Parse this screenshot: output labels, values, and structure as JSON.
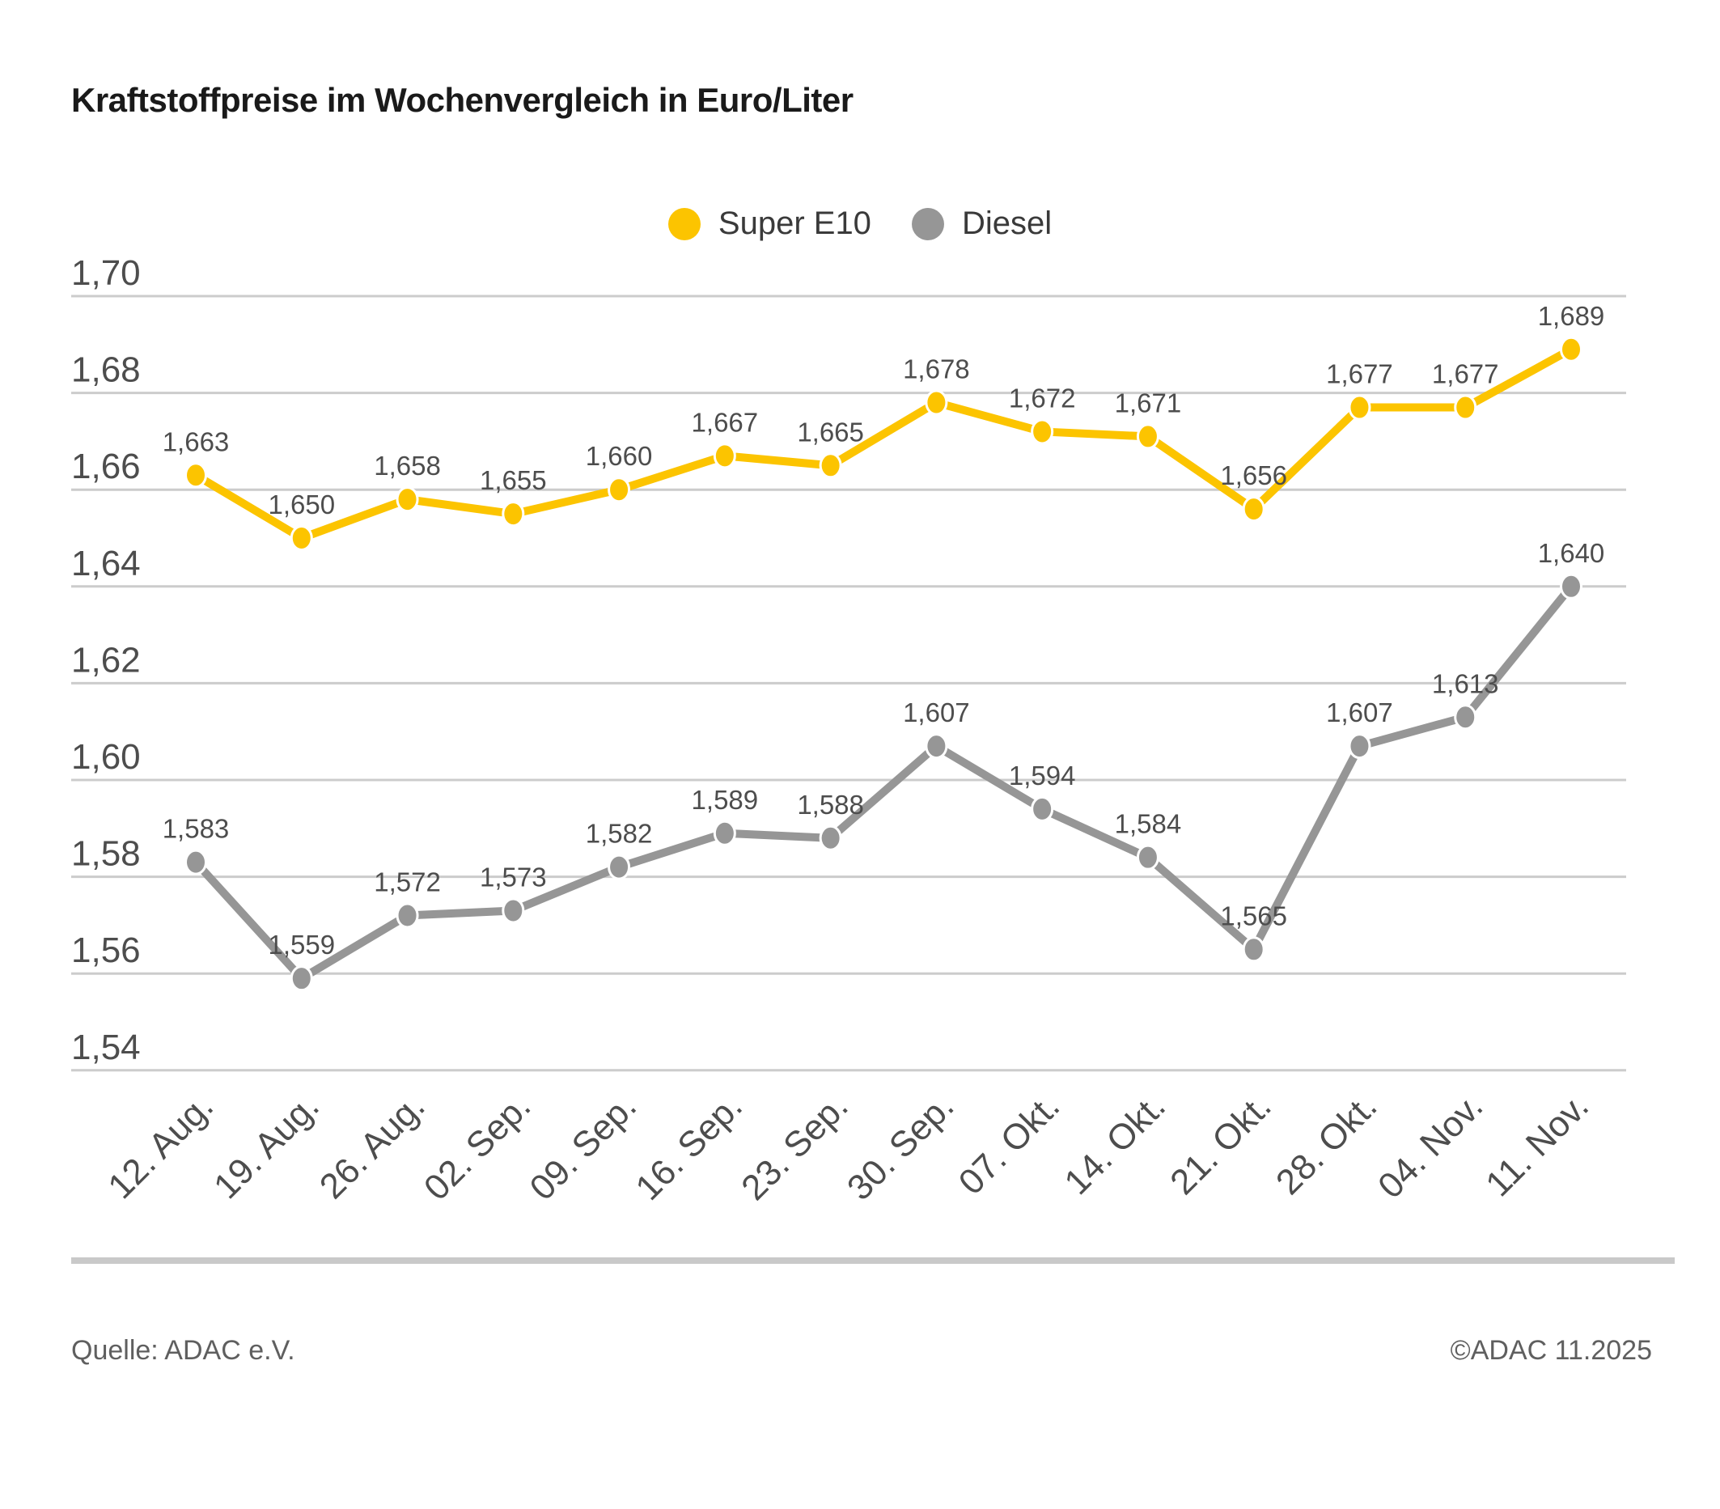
{
  "title": "Kraftstoffpreise im Wochenvergleich in Euro/Liter",
  "footer": {
    "source": "Quelle: ADAC e.V.",
    "copyright": "©ADAC 11.2025"
  },
  "colors": {
    "super_e10": "#FCC400",
    "diesel": "#969696",
    "gridline": "#cccccc",
    "label_text": "#4d4d4d",
    "axis_text": "#4d4d4d"
  },
  "chart_data": {
    "type": "line",
    "title": "Kraftstoffpreise im Wochenvergleich in Euro/Liter",
    "categories": [
      "12. Aug.",
      "19. Aug.",
      "26. Aug.",
      "02. Sep.",
      "09. Sep.",
      "16. Sep.",
      "23. Sep.",
      "30. Sep.",
      "07. Okt.",
      "14. Okt.",
      "21. Okt.",
      "28. Okt.",
      "04. Nov.",
      "11. Nov."
    ],
    "series": [
      {
        "name": "Super E10",
        "color": "#FCC400",
        "values": [
          1.663,
          1.65,
          1.658,
          1.655,
          1.66,
          1.667,
          1.665,
          1.678,
          1.672,
          1.671,
          1.656,
          1.677,
          1.677,
          1.689
        ],
        "value_labels": [
          "1,663",
          "1,650",
          "1,658",
          "1,655",
          "1,660",
          "1,667",
          "1,665",
          "1,678",
          "1,672",
          "1,671",
          "1,656",
          "1,677",
          "1,677",
          "1,689"
        ]
      },
      {
        "name": "Diesel",
        "color": "#969696",
        "values": [
          1.583,
          1.559,
          1.572,
          1.573,
          1.582,
          1.589,
          1.588,
          1.607,
          1.594,
          1.584,
          1.565,
          1.607,
          1.613,
          1.64
        ],
        "value_labels": [
          "1,583",
          "1,559",
          "1,572",
          "1,573",
          "1,582",
          "1,589",
          "1,588",
          "1,607",
          "1,594",
          "1,584",
          "1,565",
          "1,607",
          "1,613",
          "1,640"
        ]
      }
    ],
    "ylabel": "Euro/Liter",
    "ylim": [
      1.54,
      1.7
    ],
    "ytick_values": [
      1.7,
      1.68,
      1.66,
      1.64,
      1.62,
      1.6,
      1.58,
      1.56,
      1.54
    ],
    "ytick_labels": [
      "1,70",
      "1,68",
      "1,66",
      "1,64",
      "1,62",
      "1,60",
      "1,58",
      "1,56",
      "1,54"
    ],
    "grid": true,
    "legend_position": "top-center"
  }
}
